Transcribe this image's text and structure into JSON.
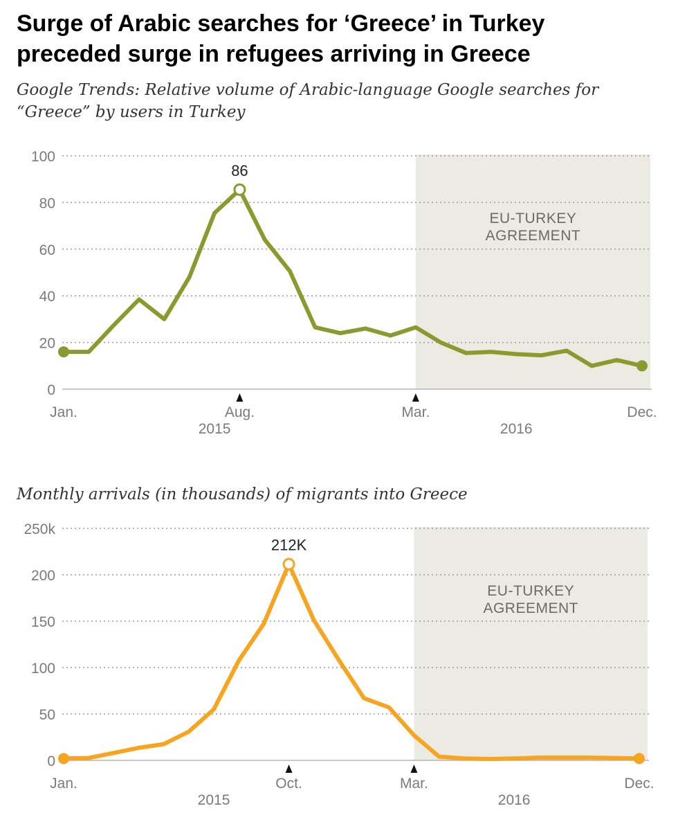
{
  "title": {
    "line1": "Surge of Arabic searches for ‘Greece’ in Turkey",
    "line2": "preceded surge in refugees arriving in Greece"
  },
  "chart_data": [
    {
      "type": "line",
      "subtitle_line1": "Google Trends: Relative volume of Arabic-language Google searches for",
      "subtitle_line2": "“Greece” by users in Turkey",
      "color": "#8a9a2e",
      "shade_color": "#ecebe3",
      "grid": true,
      "ylim": [
        0,
        100
      ],
      "yticks": [
        0,
        20,
        40,
        60,
        80,
        100
      ],
      "ytick_labels": [
        "0",
        "20",
        "40",
        "60",
        "80",
        "100"
      ],
      "x_range": [
        0,
        23
      ],
      "values": [
        16,
        16,
        27.5,
        38.5,
        30,
        48,
        75.5,
        85.5,
        64,
        50.5,
        26.5,
        24,
        26,
        23,
        26.5,
        20,
        15.5,
        16,
        15,
        14.5,
        16.5,
        10,
        12.5,
        10
      ],
      "xtick_labels": [
        {
          "x": 0,
          "label": "Jan."
        },
        {
          "x": 7,
          "label": "Aug."
        },
        {
          "x": 14,
          "label": "Mar."
        },
        {
          "x": 23,
          "label": "Dec."
        }
      ],
      "year_labels": [
        {
          "x": 6,
          "label": "2015"
        },
        {
          "x": 18,
          "label": "2016"
        }
      ],
      "arrow_markers": [
        7,
        14
      ],
      "peak": {
        "index": 7,
        "label": "86"
      },
      "filled_endpoints": [
        0,
        23
      ],
      "shaded_region": {
        "start": 14,
        "end": 23,
        "label_line1": "EU-TURKEY",
        "label_line2": "AGREEMENT"
      }
    },
    {
      "type": "line",
      "subtitle_line1": "Monthly arrivals (in thousands) of migrants into Greece",
      "color": "#f7a520",
      "shade_color": "#ecebe3",
      "grid": true,
      "ylim": [
        0,
        250
      ],
      "yticks": [
        0,
        50,
        100,
        150,
        200,
        250
      ],
      "ytick_labels": [
        "0",
        "50",
        "100",
        "150",
        "200",
        "250k"
      ],
      "x_range": [
        0,
        23
      ],
      "values": [
        2,
        2.5,
        8,
        13.5,
        17.5,
        31,
        55,
        107.5,
        147.5,
        211.5,
        151,
        108,
        67,
        57,
        27,
        4,
        2,
        1.5,
        2,
        3,
        3,
        3,
        2.5,
        2
      ],
      "xtick_labels": [
        {
          "x": 0,
          "label": "Jan."
        },
        {
          "x": 9,
          "label": "Oct."
        },
        {
          "x": 14,
          "label": "Mar."
        },
        {
          "x": 23,
          "label": "Dec."
        }
      ],
      "year_labels": [
        {
          "x": 6,
          "label": "2015"
        },
        {
          "x": 18,
          "label": "2016"
        }
      ],
      "arrow_markers": [
        9,
        14
      ],
      "peak": {
        "index": 9,
        "label": "212K"
      },
      "filled_endpoints": [
        0,
        23
      ],
      "shaded_region": {
        "start": 14,
        "end": 23,
        "label_line1": "EU-TURKEY",
        "label_line2": "AGREEMENT"
      }
    }
  ]
}
